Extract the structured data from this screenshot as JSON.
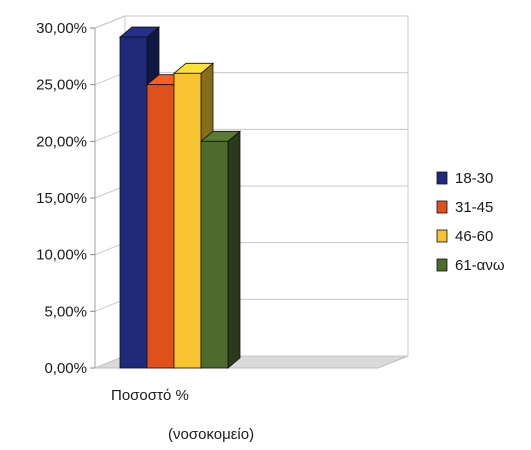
{
  "chart_data": {
    "type": "bar",
    "categories": [
      "Ποσοστό %"
    ],
    "series": [
      {
        "name": "18-30",
        "values": [
          29.2
        ],
        "color": "#1f2a7a"
      },
      {
        "name": "31-45",
        "values": [
          25.0
        ],
        "color": "#e0501c"
      },
      {
        "name": "46-60",
        "values": [
          26.0
        ],
        "color": "#f5c430"
      },
      {
        "name": "61-ανω",
        "values": [
          20.0
        ],
        "color": "#4e6b2e"
      }
    ],
    "y_ticks": [
      "0,00%",
      "5,00%",
      "10,00%",
      "15,00%",
      "20,00%",
      "25,00%",
      "30,00%"
    ],
    "ylim": [
      0,
      30
    ],
    "grid": true,
    "legend_position": "right",
    "note": "(νοσοκομείο)"
  }
}
